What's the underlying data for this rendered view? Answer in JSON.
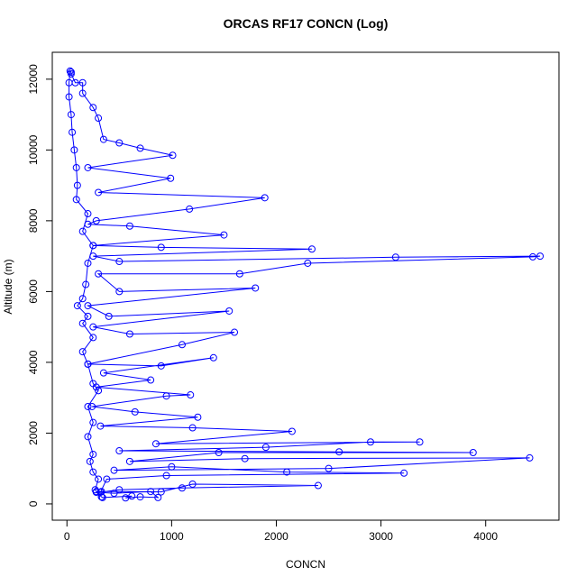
{
  "chart_data": {
    "type": "line",
    "title": "ORCAS RF17 CONCN (Log)",
    "x_label": "CONCN",
    "y_label": "Altitude (m)",
    "x": [
      330,
      340,
      620,
      560,
      700,
      870,
      800,
      450,
      280,
      330,
      900,
      1200,
      2400,
      1100,
      500,
      320,
      380,
      950,
      3220,
      2100,
      1000,
      450,
      2500,
      4420,
      1700,
      600,
      1450,
      3880,
      2600,
      500,
      1900,
      2900,
      3370,
      850,
      2150,
      1200,
      320,
      1250,
      650,
      240,
      950,
      1180,
      280,
      800,
      350,
      1400,
      900,
      200,
      1100,
      1600,
      600,
      250,
      1550,
      400,
      200,
      1800,
      500,
      300,
      1650,
      2300,
      4450,
      4520,
      3140,
      500,
      250,
      2340,
      900,
      250,
      1500,
      600,
      200,
      280,
      1170,
      1890,
      300,
      990,
      200,
      1010,
      700,
      500,
      350,
      300,
      250,
      150,
      150,
      80,
      40,
      40,
      30,
      20,
      20,
      40,
      50,
      70,
      90,
      100,
      90,
      200,
      150,
      250,
      200,
      180,
      150,
      100,
      200,
      150,
      250,
      150,
      200,
      250,
      300,
      200,
      250,
      200,
      250,
      220,
      250,
      300,
      270,
      280,
      330
    ],
    "series": [
      {
        "name": "Altitude",
        "color": "#0000ff",
        "values": [
          200,
          180,
          220,
          170,
          200,
          180,
          350,
          300,
          330,
          350,
          340,
          560,
          520,
          450,
          400,
          330,
          700,
          800,
          870,
          900,
          1050,
          950,
          1000,
          1300,
          1280,
          1200,
          1450,
          1450,
          1470,
          1500,
          1600,
          1750,
          1750,
          1700,
          2050,
          2150,
          2200,
          2450,
          2600,
          2750,
          3050,
          3080,
          3300,
          3500,
          3700,
          4130,
          3900,
          3950,
          4500,
          4850,
          4800,
          5000,
          5450,
          5300,
          5600,
          6100,
          6000,
          6500,
          6500,
          6800,
          6980,
          7000,
          6970,
          6850,
          7000,
          7200,
          7250,
          7300,
          7600,
          7850,
          7900,
          8000,
          8330,
          8650,
          8800,
          9200,
          9500,
          9850,
          10050,
          10200,
          10300,
          10900,
          11200,
          11600,
          11900,
          11900,
          12150,
          12200,
          12230,
          11900,
          11500,
          11000,
          10500,
          10000,
          9500,
          9000,
          8600,
          8200,
          7700,
          7300,
          6800,
          6200,
          5800,
          5600,
          5300,
          5100,
          4700,
          4300,
          3950,
          3400,
          3200,
          2750,
          2300,
          1900,
          1400,
          1200,
          900,
          700,
          400,
          350,
          200
        ]
      }
    ],
    "xlim": [
      -140,
      4700
    ],
    "ylim": [
      -460,
      12760
    ],
    "xticks": [
      0,
      1000,
      2000,
      3000,
      4000
    ],
    "yticks": [
      0,
      2000,
      4000,
      6000,
      8000,
      10000,
      12000
    ]
  }
}
